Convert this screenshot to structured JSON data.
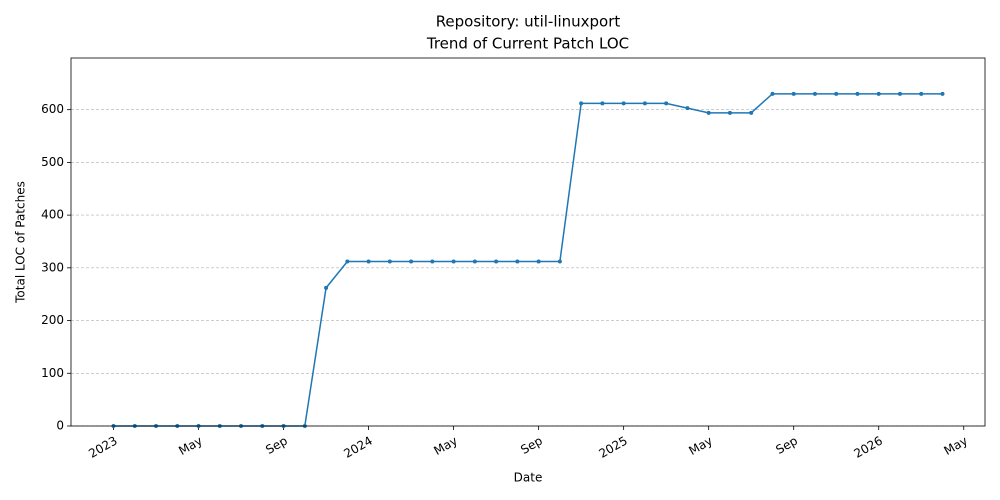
{
  "chart_data": {
    "type": "line",
    "title": "Repository: util-linuxport",
    "subtitle": "Trend of Current Patch LOC",
    "x_label": "Date",
    "y_label": "Total LOC of Patches",
    "x": [
      "2023-01",
      "2023-02",
      "2023-03",
      "2023-04",
      "2023-05",
      "2023-06",
      "2023-07",
      "2023-08",
      "2023-09",
      "2023-10",
      "2023-11",
      "2023-12",
      "2024-01",
      "2024-02",
      "2024-03",
      "2024-04",
      "2024-05",
      "2024-06",
      "2024-07",
      "2024-08",
      "2024-09",
      "2024-10",
      "2024-11",
      "2024-12",
      "2025-01",
      "2025-02",
      "2025-03",
      "2025-04",
      "2025-05",
      "2025-06",
      "2025-07",
      "2025-08",
      "2025-09",
      "2025-10",
      "2025-11",
      "2025-12",
      "2026-01",
      "2026-02",
      "2026-03",
      "2026-04"
    ],
    "series": [
      {
        "color": "#1f77b4",
        "values": [
          0,
          0,
          0,
          0,
          0,
          0,
          0,
          0,
          0,
          0,
          262,
          312,
          312,
          312,
          312,
          312,
          312,
          312,
          312,
          312,
          312,
          312,
          612,
          612,
          612,
          612,
          612,
          603,
          594,
          594,
          594,
          630,
          630,
          630,
          630,
          630,
          630,
          630,
          630,
          630
        ]
      }
    ],
    "xlim": [
      "2022-11",
      "2026-06"
    ],
    "xticks": [
      {
        "value": "2023-01",
        "label": "2023"
      },
      {
        "value": "2023-05",
        "label": "May"
      },
      {
        "value": "2023-09",
        "label": "Sep"
      },
      {
        "value": "2024-01",
        "label": "2024"
      },
      {
        "value": "2024-05",
        "label": "May"
      },
      {
        "value": "2024-09",
        "label": "Sep"
      },
      {
        "value": "2025-01",
        "label": "2025"
      },
      {
        "value": "2025-05",
        "label": "May"
      },
      {
        "value": "2025-09",
        "label": "Sep"
      },
      {
        "value": "2026-01",
        "label": "2026"
      },
      {
        "value": "2026-05",
        "label": "May"
      }
    ],
    "ylim": [
      0,
      698
    ],
    "yticks": [
      0,
      100,
      200,
      300,
      400,
      500,
      600
    ],
    "grid": true
  }
}
